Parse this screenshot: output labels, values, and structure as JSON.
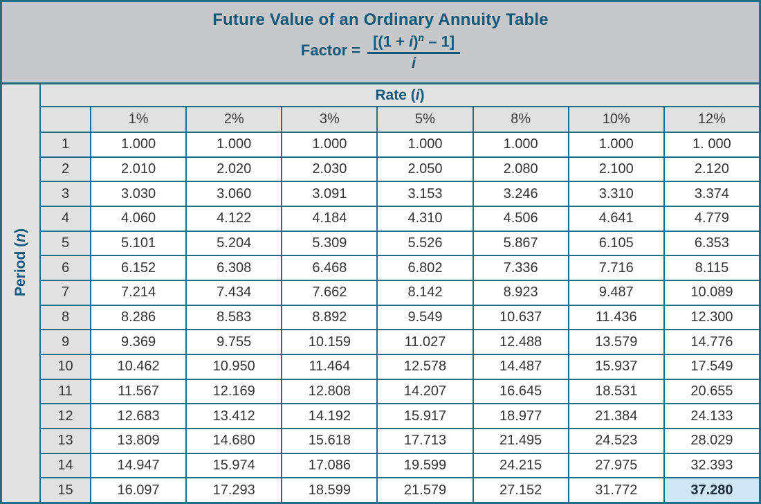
{
  "title": "Future Value of an Ordinary Annuity Table",
  "formula": {
    "lhs": "Factor =",
    "num_p1": "[(1 + ",
    "num_i": "i",
    "num_p2": ")",
    "num_sup": "n",
    "num_p3": " – 1]",
    "den": "i"
  },
  "axis": {
    "rate_p1": "Rate (",
    "rate_i": "i",
    "rate_p2": ")",
    "period_p1": "Period (",
    "period_n": "n",
    "period_p2": ")"
  },
  "colors": {
    "teal_text": "#11587a",
    "border_teal": "#1e6d8b",
    "banner_bg": "#c7c8c9",
    "header_bg": "#e1e1e2",
    "cell_bg": "#ffffff",
    "highlight_bg": "#cfe6f5",
    "highlight_text": "#1b2a38",
    "data_text": "#333333"
  },
  "chart_data": {
    "type": "table",
    "title": "Future Value of an Ordinary Annuity Table",
    "formula_text": "Factor = [(1 + i)^n – 1] / i",
    "col_axis_label": "Rate (i)",
    "row_axis_label": "Period (n)",
    "columns": [
      "1%",
      "2%",
      "3%",
      "5%",
      "8%",
      "10%",
      "12%"
    ],
    "rows": [
      {
        "period": "1",
        "values": [
          "1.000",
          "1.000",
          "1.000",
          "1.000",
          "1.000",
          "1.000",
          "1. 000"
        ]
      },
      {
        "period": "2",
        "values": [
          "2.010",
          "2.020",
          "2.030",
          "2.050",
          "2.080",
          "2.100",
          "2.120"
        ]
      },
      {
        "period": "3",
        "values": [
          "3.030",
          "3.060",
          "3.091",
          "3.153",
          "3.246",
          "3.310",
          "3.374"
        ]
      },
      {
        "period": "4",
        "values": [
          "4.060",
          "4.122",
          "4.184",
          "4.310",
          "4.506",
          "4.641",
          "4.779"
        ]
      },
      {
        "period": "5",
        "values": [
          "5.101",
          "5.204",
          "5.309",
          "5.526",
          "5.867",
          "6.105",
          "6.353"
        ]
      },
      {
        "period": "6",
        "values": [
          "6.152",
          "6.308",
          "6.468",
          "6.802",
          "7.336",
          "7.716",
          "8.115"
        ]
      },
      {
        "period": "7",
        "values": [
          "7.214",
          "7.434",
          "7.662",
          "8.142",
          "8.923",
          "9.487",
          "10.089"
        ]
      },
      {
        "period": "8",
        "values": [
          "8.286",
          "8.583",
          "8.892",
          "9.549",
          "10.637",
          "11.436",
          "12.300"
        ]
      },
      {
        "period": "9",
        "values": [
          "9.369",
          "9.755",
          "10.159",
          "11.027",
          "12.488",
          "13.579",
          "14.776"
        ]
      },
      {
        "period": "10",
        "values": [
          "10.462",
          "10.950",
          "11.464",
          "12.578",
          "14.487",
          "15.937",
          "17.549"
        ]
      },
      {
        "period": "11",
        "values": [
          "11.567",
          "12.169",
          "12.808",
          "14.207",
          "16.645",
          "18.531",
          "20.655"
        ]
      },
      {
        "period": "12",
        "values": [
          "12.683",
          "13.412",
          "14.192",
          "15.917",
          "18.977",
          "21.384",
          "24.133"
        ]
      },
      {
        "period": "13",
        "values": [
          "13.809",
          "14.680",
          "15.618",
          "17.713",
          "21.495",
          "24.523",
          "28.029"
        ]
      },
      {
        "period": "14",
        "values": [
          "14.947",
          "15.974",
          "17.086",
          "19.599",
          "24.215",
          "27.975",
          "32.393"
        ]
      },
      {
        "period": "15",
        "values": [
          "16.097",
          "17.293",
          "18.599",
          "21.579",
          "27.152",
          "31.772",
          "37.280"
        ]
      }
    ],
    "highlighted_cell": {
      "period": "15",
      "rate": "12%",
      "value": "37.280"
    }
  }
}
